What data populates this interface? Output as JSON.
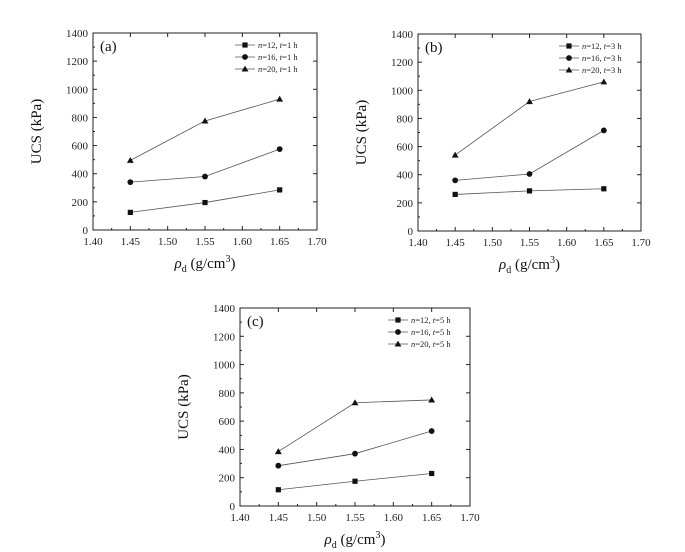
{
  "chart_data": [
    {
      "type": "line",
      "panel_label": "(a)",
      "x": [
        1.45,
        1.55,
        1.65
      ],
      "xlim": [
        1.4,
        1.7
      ],
      "ylim": [
        0,
        1400
      ],
      "xticks": [
        "1.40",
        "1.45",
        "1.50",
        "1.55",
        "1.60",
        "1.65",
        "1.70"
      ],
      "yticks": [
        "0",
        "200",
        "400",
        "600",
        "800",
        "1000",
        "1200",
        "1400"
      ],
      "xlabel_main": "ρ",
      "xlabel_sub": "d",
      "xlabel_unit": " (g/cm",
      "xlabel_sup": "3",
      "xlabel_close": ")",
      "ylabel": "UCS (kPa)",
      "legend_position": "top-right",
      "series": [
        {
          "name_n": "n",
          "name_mid": "=12, ",
          "name_t": "t",
          "name_end": "=1 h",
          "marker": "square",
          "values": [
            125,
            195,
            285
          ]
        },
        {
          "name_n": "n",
          "name_mid": "=16, ",
          "name_t": "t",
          "name_end": "=1 h",
          "marker": "circle",
          "values": [
            340,
            380,
            575
          ]
        },
        {
          "name_n": "n",
          "name_mid": "=20, ",
          "name_t": "t",
          "name_end": "=1 h",
          "marker": "triangle",
          "values": [
            495,
            775,
            930
          ]
        }
      ]
    },
    {
      "type": "line",
      "panel_label": "(b)",
      "x": [
        1.45,
        1.55,
        1.65
      ],
      "xlim": [
        1.4,
        1.7
      ],
      "ylim": [
        0,
        1400
      ],
      "xticks": [
        "1.40",
        "1.45",
        "1.50",
        "1.55",
        "1.60",
        "1.65",
        "1.70"
      ],
      "yticks": [
        "0",
        "200",
        "400",
        "600",
        "800",
        "1000",
        "1200",
        "1400"
      ],
      "xlabel_main": "ρ",
      "xlabel_sub": "d",
      "xlabel_unit": " (g/cm",
      "xlabel_sup": "3",
      "xlabel_close": ")",
      "ylabel": "UCS (kPa)",
      "legend_position": "top-right",
      "series": [
        {
          "name_n": "n",
          "name_mid": "=12, ",
          "name_t": "t",
          "name_end": "=3 h",
          "marker": "square",
          "values": [
            260,
            285,
            300
          ]
        },
        {
          "name_n": "n",
          "name_mid": "=16, ",
          "name_t": "t",
          "name_end": "=3 h",
          "marker": "circle",
          "values": [
            360,
            405,
            715
          ]
        },
        {
          "name_n": "n",
          "name_mid": "=20, ",
          "name_t": "t",
          "name_end": "=3 h",
          "marker": "triangle",
          "values": [
            540,
            920,
            1060
          ]
        }
      ]
    },
    {
      "type": "line",
      "panel_label": "(c)",
      "x": [
        1.45,
        1.55,
        1.65
      ],
      "xlim": [
        1.4,
        1.7
      ],
      "ylim": [
        0,
        1400
      ],
      "xticks": [
        "1.40",
        "1.45",
        "1.50",
        "1.55",
        "1.60",
        "1.65",
        "1.70"
      ],
      "yticks": [
        "0",
        "200",
        "400",
        "600",
        "800",
        "1000",
        "1200",
        "1400"
      ],
      "xlabel_main": "ρ",
      "xlabel_sub": "d",
      "xlabel_unit": " (g/cm",
      "xlabel_sup": "3",
      "xlabel_close": ")",
      "ylabel": "UCS (kPa)",
      "legend_position": "top-right",
      "series": [
        {
          "name_n": "n",
          "name_mid": "=12, ",
          "name_t": "t",
          "name_end": "=5 h",
          "marker": "square",
          "values": [
            115,
            175,
            230
          ]
        },
        {
          "name_n": "n",
          "name_mid": "=16, ",
          "name_t": "t",
          "name_end": "=5 h",
          "marker": "circle",
          "values": [
            285,
            370,
            530
          ]
        },
        {
          "name_n": "n",
          "name_mid": "=20, ",
          "name_t": "t",
          "name_end": "=5 h",
          "marker": "triangle",
          "values": [
            385,
            730,
            750
          ]
        }
      ]
    }
  ]
}
